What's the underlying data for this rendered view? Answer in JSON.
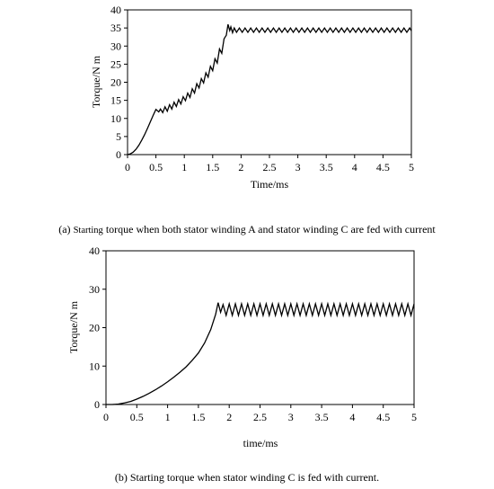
{
  "chart_data": [
    {
      "type": "line",
      "panel": "a",
      "xlabel": "Time/ms",
      "ylabel": "Torque/N m",
      "xlim": [
        0,
        5
      ],
      "ylim": [
        0,
        40
      ],
      "xticks": [
        "0",
        "0.5",
        "1",
        "1.5",
        "2",
        "2.5",
        "3",
        "3.5",
        "4",
        "4.5",
        "5"
      ],
      "yticks": [
        "0",
        "5",
        "10",
        "15",
        "20",
        "25",
        "30",
        "35",
        "40"
      ],
      "grid": false,
      "caption_tag": "(a)",
      "caption_prefix": "Starting",
      "caption_text": "torque when both stator winding A and stator winding C are fed with current",
      "series": [
        {
          "x": [
            0.0,
            0.05,
            0.1,
            0.15,
            0.2,
            0.25,
            0.3,
            0.35,
            0.4,
            0.45,
            0.5,
            0.55,
            0.58,
            0.62,
            0.66,
            0.7,
            0.74,
            0.78,
            0.82,
            0.86,
            0.9,
            0.94,
            0.98,
            1.02,
            1.06,
            1.1,
            1.14,
            1.18,
            1.22,
            1.26,
            1.3,
            1.34,
            1.38,
            1.42,
            1.46,
            1.5,
            1.54,
            1.58,
            1.62,
            1.66,
            1.7,
            1.74,
            1.77,
            1.8,
            1.82,
            1.85,
            1.88,
            1.92,
            1.97,
            2.02,
            2.07,
            2.12,
            2.17,
            2.22,
            2.27,
            2.32,
            2.37,
            2.42,
            2.47,
            2.52,
            2.57,
            2.62,
            2.67,
            2.72,
            2.77,
            2.82,
            2.87,
            2.92,
            2.97,
            3.02,
            3.07,
            3.12,
            3.17,
            3.22,
            3.27,
            3.32,
            3.37,
            3.42,
            3.47,
            3.52,
            3.57,
            3.62,
            3.67,
            3.72,
            3.77,
            3.82,
            3.87,
            3.92,
            3.97,
            4.02,
            4.07,
            4.12,
            4.17,
            4.22,
            4.27,
            4.32,
            4.37,
            4.42,
            4.47,
            4.52,
            4.57,
            4.62,
            4.67,
            4.72,
            4.77,
            4.82,
            4.87,
            4.92,
            4.97,
            5.0
          ],
          "y": [
            0.0,
            0.2,
            0.7,
            1.5,
            2.6,
            4.0,
            5.5,
            7.2,
            9.0,
            10.8,
            12.5,
            11.8,
            12.6,
            11.6,
            13.2,
            12.0,
            13.8,
            12.6,
            14.5,
            13.3,
            15.2,
            14.0,
            16.0,
            14.9,
            17.0,
            15.8,
            18.2,
            17.0,
            19.6,
            18.4,
            21.0,
            19.8,
            22.6,
            21.4,
            24.4,
            23.2,
            26.5,
            25.3,
            29.2,
            28.0,
            32.0,
            33.0,
            36.0,
            34.3,
            35.3,
            33.7,
            35.0,
            33.8,
            35.0,
            33.8,
            35.0,
            33.8,
            35.0,
            33.8,
            35.0,
            33.8,
            35.0,
            33.8,
            35.0,
            33.8,
            35.0,
            33.8,
            35.0,
            33.8,
            35.0,
            33.8,
            35.0,
            33.8,
            35.0,
            33.8,
            35.0,
            33.8,
            35.0,
            33.8,
            35.0,
            33.8,
            35.0,
            33.8,
            35.0,
            33.8,
            35.0,
            33.8,
            35.0,
            33.8,
            35.0,
            33.8,
            35.0,
            33.8,
            35.0,
            33.8,
            35.0,
            33.8,
            35.0,
            33.8,
            35.0,
            33.8,
            35.0,
            33.8,
            35.0,
            33.8,
            35.0,
            33.8,
            35.0,
            33.8,
            35.0,
            33.8,
            35.0,
            33.8,
            35.0,
            34.2
          ]
        }
      ]
    },
    {
      "type": "line",
      "panel": "b",
      "xlabel": "time/ms",
      "ylabel": "Torque/N m",
      "xlim": [
        0,
        5
      ],
      "ylim": [
        0,
        40
      ],
      "xticks": [
        "0",
        "0.5",
        "1",
        "1.5",
        "2",
        "2.5",
        "3",
        "3.5",
        "4",
        "4.5",
        "5"
      ],
      "yticks": [
        "0",
        "10",
        "20",
        "30",
        "40"
      ],
      "grid": false,
      "caption_tag": "(b)",
      "caption_text": "Starting torque when stator winding C is fed with current.",
      "series": [
        {
          "x": [
            0.0,
            0.1,
            0.2,
            0.3,
            0.4,
            0.5,
            0.6,
            0.7,
            0.8,
            0.9,
            1.0,
            1.1,
            1.2,
            1.3,
            1.4,
            1.5,
            1.6,
            1.7,
            1.78,
            1.82,
            1.86,
            1.9,
            1.95,
            2.0,
            2.05,
            2.1,
            2.15,
            2.2,
            2.25,
            2.3,
            2.35,
            2.4,
            2.45,
            2.5,
            2.55,
            2.6,
            2.65,
            2.7,
            2.75,
            2.8,
            2.85,
            2.9,
            2.95,
            3.0,
            3.05,
            3.1,
            3.15,
            3.2,
            3.25,
            3.3,
            3.35,
            3.4,
            3.45,
            3.5,
            3.55,
            3.6,
            3.65,
            3.7,
            3.75,
            3.8,
            3.85,
            3.9,
            3.95,
            4.0,
            4.05,
            4.1,
            4.15,
            4.2,
            4.25,
            4.3,
            4.35,
            4.4,
            4.45,
            4.5,
            4.55,
            4.6,
            4.65,
            4.7,
            4.75,
            4.8,
            4.85,
            4.9,
            4.95,
            5.0
          ],
          "y": [
            0.0,
            0.0,
            0.1,
            0.4,
            0.8,
            1.4,
            2.1,
            2.9,
            3.8,
            4.8,
            5.9,
            7.1,
            8.4,
            9.8,
            11.5,
            13.4,
            16.0,
            19.5,
            23.5,
            26.5,
            24.0,
            26.0,
            23.2,
            26.2,
            23.2,
            26.2,
            23.2,
            26.2,
            23.2,
            26.2,
            23.2,
            26.2,
            23.2,
            26.2,
            23.2,
            26.2,
            23.2,
            26.2,
            23.2,
            26.2,
            23.2,
            26.2,
            23.2,
            26.2,
            23.2,
            26.2,
            23.2,
            26.2,
            23.2,
            26.2,
            23.2,
            26.2,
            23.2,
            26.2,
            23.2,
            26.2,
            23.2,
            26.2,
            23.2,
            26.2,
            23.2,
            26.2,
            23.2,
            26.2,
            23.2,
            26.2,
            23.2,
            26.2,
            23.2,
            26.2,
            23.2,
            26.2,
            23.2,
            26.2,
            23.2,
            26.2,
            23.2,
            26.2,
            23.2,
            26.2,
            23.2,
            26.2,
            23.2,
            26.2
          ]
        }
      ]
    }
  ]
}
